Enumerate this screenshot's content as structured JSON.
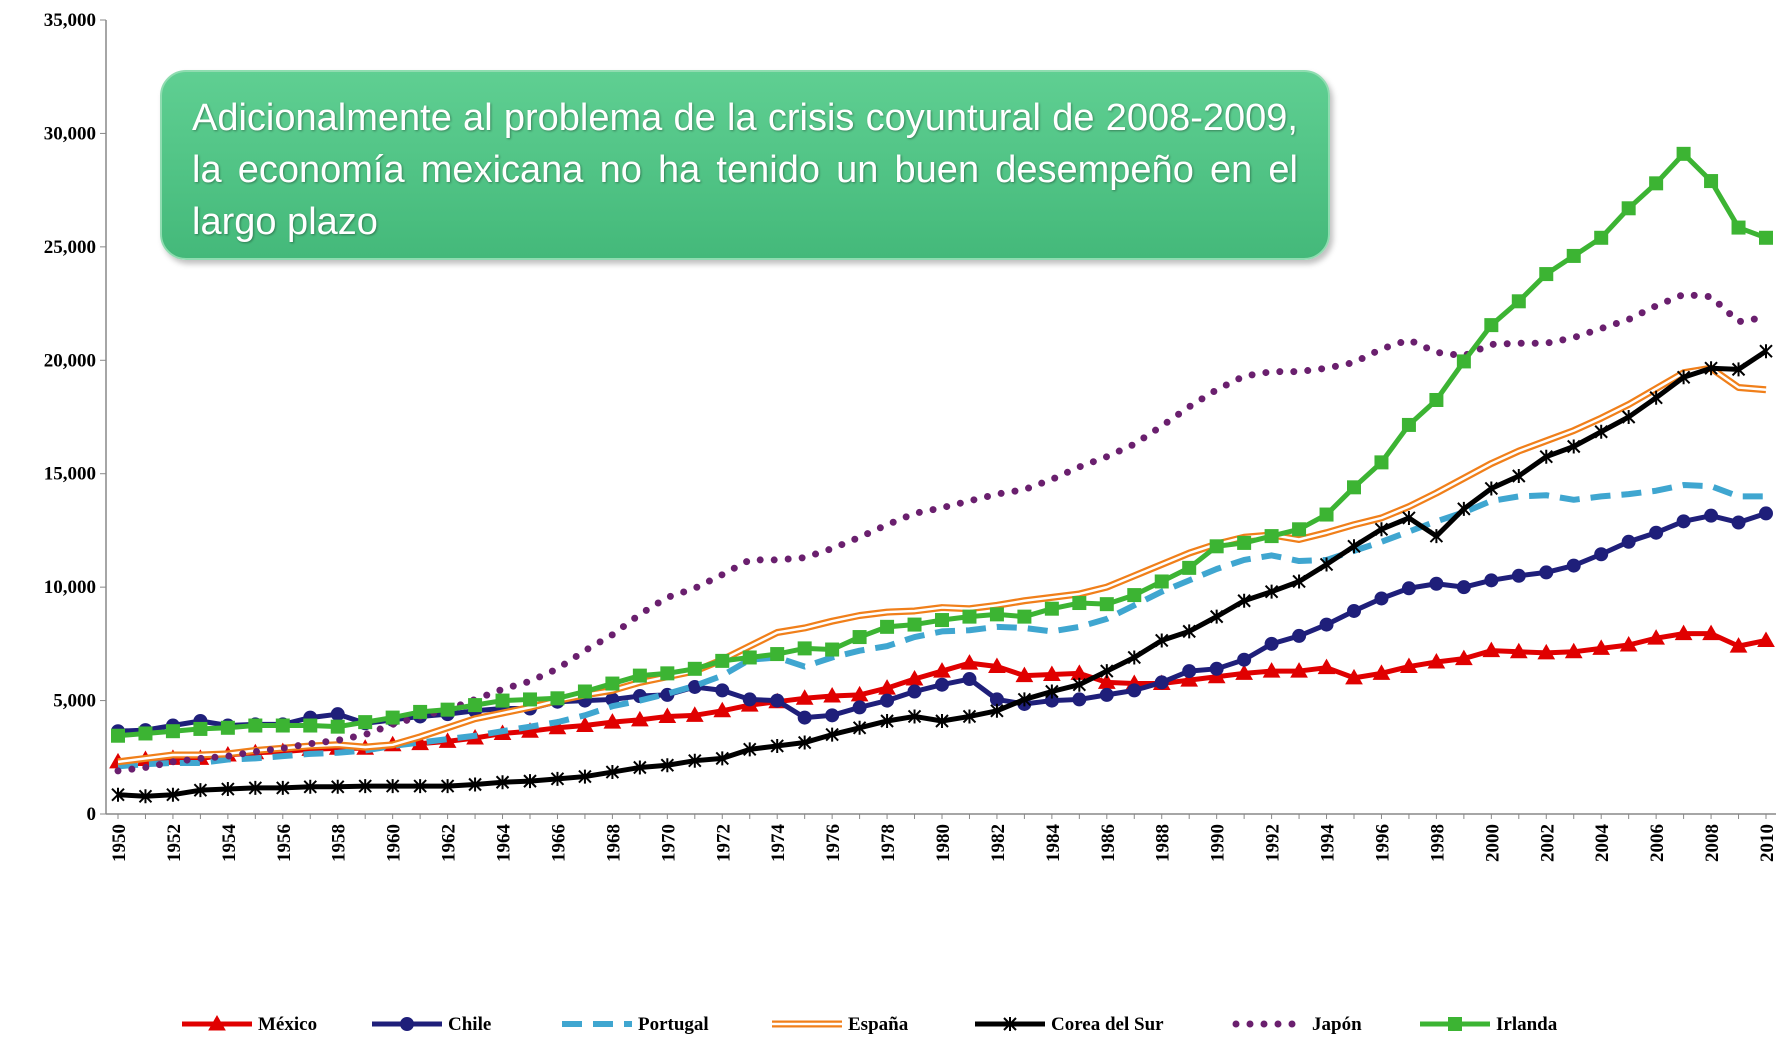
{
  "chart_data": {
    "type": "line",
    "annotation": "Adicionalmente al problema de la crisis coyuntural de 2008-2009, la economía mexicana no ha tenido un buen desempeño en el largo plazo",
    "categories": [
      "1950",
      null,
      "1952",
      null,
      "1954",
      null,
      "1956",
      null,
      "1958",
      null,
      "1960",
      null,
      "1962",
      null,
      "1964",
      null,
      "1966",
      null,
      "1968",
      null,
      "1970",
      null,
      "1972",
      null,
      "1974",
      null,
      "1976",
      null,
      "1978",
      null,
      "1980",
      null,
      "1982",
      null,
      "1984",
      null,
      "1986",
      null,
      "1988",
      null,
      "1990",
      null,
      "1992",
      null,
      "1994",
      null,
      "1996",
      null,
      "1998",
      null,
      "2000",
      null,
      "2002",
      null,
      "2004",
      null,
      "2006",
      null,
      "2008",
      null,
      "2010"
    ],
    "ylim": [
      0,
      35000
    ],
    "yticks": [
      0,
      {
        "value": 5000,
        "label": "5,000"
      },
      {
        "value": 10000,
        "label": "10,000"
      },
      {
        "value": 15000,
        "label": "15,000"
      },
      {
        "value": 20000,
        "label": "20,000"
      },
      {
        "value": 25000,
        "label": "25,000"
      },
      {
        "value": 30000,
        "label": "30,000"
      },
      {
        "value": 35000,
        "label": "35,000"
      }
    ],
    "legend": "bottom",
    "series": [
      {
        "name": "México",
        "color": "#e00000",
        "style": "solid",
        "marker": "triangle",
        "values": [
          2300,
          2400,
          2450,
          2450,
          2600,
          2700,
          2750,
          2850,
          2900,
          2900,
          3050,
          3100,
          3200,
          3350,
          3550,
          3650,
          3800,
          3900,
          4050,
          4150,
          4300,
          4350,
          4550,
          4800,
          4950,
          5100,
          5200,
          5250,
          5550,
          5950,
          6300,
          6650,
          6500,
          6100,
          6150,
          6200,
          5800,
          5750,
          5750,
          5900,
          6050,
          6200,
          6300,
          6300,
          6450,
          6000,
          6200,
          6500,
          6700,
          6850,
          7200,
          7150,
          7100,
          7150,
          7300,
          7450,
          7750,
          7950,
          7950,
          7400,
          7650
        ]
      },
      {
        "name": "Chile",
        "color": "#1f1f7a",
        "style": "solid",
        "marker": "circle",
        "values": [
          3650,
          3700,
          3900,
          4100,
          3900,
          3950,
          3950,
          4250,
          4400,
          4000,
          4150,
          4300,
          4400,
          4550,
          4650,
          4650,
          4950,
          5000,
          5050,
          5200,
          5250,
          5600,
          5450,
          5050,
          5000,
          4250,
          4350,
          4700,
          5000,
          5400,
          5700,
          5950,
          5050,
          4850,
          5000,
          5050,
          5250,
          5450,
          5800,
          6300,
          6400,
          6800,
          7500,
          7850,
          8350,
          8950,
          9500,
          9950,
          10150,
          10000,
          10300,
          10500,
          10650,
          10950,
          11450,
          12000,
          12400,
          12900,
          13150,
          12850,
          13250
        ]
      },
      {
        "name": "Portugal",
        "color": "#3fa6d0",
        "style": "dashed",
        "marker": "none",
        "values": [
          2100,
          2200,
          2250,
          2250,
          2400,
          2450,
          2550,
          2650,
          2700,
          2800,
          3000,
          3150,
          3300,
          3450,
          3650,
          3850,
          4050,
          4350,
          4750,
          5000,
          5300,
          5650,
          6100,
          6800,
          6900,
          6500,
          6900,
          7200,
          7400,
          7800,
          8050,
          8100,
          8250,
          8200,
          8050,
          8250,
          8600,
          9200,
          9800,
          10300,
          10800,
          11200,
          11400,
          11150,
          11200,
          11600,
          12000,
          12450,
          12900,
          13300,
          13800,
          14000,
          14050,
          13850,
          14000,
          14100,
          14250,
          14500,
          14450,
          14000,
          14000
        ]
      },
      {
        "name": "España",
        "color": "#f07f1a",
        "style": "double",
        "marker": "none",
        "values": [
          2300,
          2450,
          2600,
          2600,
          2650,
          2800,
          2900,
          3000,
          3050,
          2950,
          3050,
          3400,
          3800,
          4200,
          4450,
          4700,
          5000,
          5250,
          5450,
          5800,
          6050,
          6300,
          6800,
          7400,
          8000,
          8200,
          8500,
          8750,
          8900,
          8950,
          9100,
          9050,
          9200,
          9400,
          9550,
          9700,
          10000,
          10500,
          11000,
          11500,
          11900,
          12200,
          12300,
          12100,
          12400,
          12750,
          13050,
          13550,
          14150,
          14800,
          15450,
          16000,
          16450,
          16900,
          17450,
          18050,
          18750,
          19450,
          19650,
          18800,
          18700
        ]
      },
      {
        "name": "Corea del Sur",
        "color": "#000000",
        "style": "solid",
        "marker": "star",
        "values": [
          850,
          780,
          850,
          1050,
          1100,
          1150,
          1150,
          1200,
          1200,
          1230,
          1230,
          1230,
          1230,
          1300,
          1400,
          1450,
          1550,
          1650,
          1850,
          2050,
          2150,
          2350,
          2450,
          2850,
          3000,
          3150,
          3500,
          3800,
          4100,
          4300,
          4100,
          4300,
          4550,
          5050,
          5400,
          5700,
          6300,
          6900,
          7650,
          8050,
          8700,
          9400,
          9800,
          10250,
          11000,
          11800,
          12550,
          13050,
          12250,
          13450,
          14350,
          14900,
          15750,
          16200,
          16850,
          17500,
          18350,
          19250,
          19650,
          19600,
          20400
        ]
      },
      {
        "name": "Japón",
        "color": "#6a1f6e",
        "style": "dotted",
        "marker": "none",
        "values": [
          1900,
          2050,
          2300,
          2450,
          2550,
          2750,
          2900,
          3100,
          3250,
          3500,
          3950,
          4300,
          4600,
          5050,
          5500,
          5850,
          6400,
          7200,
          7900,
          8800,
          9550,
          9950,
          10550,
          11200,
          11200,
          11300,
          11700,
          12200,
          12750,
          13250,
          13500,
          13800,
          14100,
          14300,
          14750,
          15300,
          15750,
          16300,
          17100,
          17950,
          18700,
          19300,
          19500,
          19500,
          19650,
          19900,
          20500,
          20900,
          20350,
          20200,
          20700,
          20750,
          20750,
          21000,
          21400,
          21800,
          22400,
          22900,
          22800,
          21700,
          21900
        ]
      },
      {
        "name": "Irlanda",
        "color": "#3cb433",
        "style": "solid",
        "marker": "square",
        "values": [
          3450,
          3550,
          3650,
          3750,
          3800,
          3900,
          3900,
          3900,
          3850,
          4050,
          4250,
          4500,
          4600,
          4800,
          5000,
          5050,
          5100,
          5400,
          5750,
          6100,
          6200,
          6400,
          6750,
          6900,
          7050,
          7300,
          7250,
          7800,
          8250,
          8350,
          8550,
          8700,
          8800,
          8700,
          9050,
          9300,
          9250,
          9650,
          10250,
          10850,
          11800,
          11950,
          12250,
          12550,
          13200,
          14400,
          15500,
          17150,
          18250,
          19950,
          21550,
          22600,
          23800,
          24600,
          25400,
          26700,
          27800,
          29100,
          27900,
          25850,
          25400
        ]
      }
    ]
  }
}
